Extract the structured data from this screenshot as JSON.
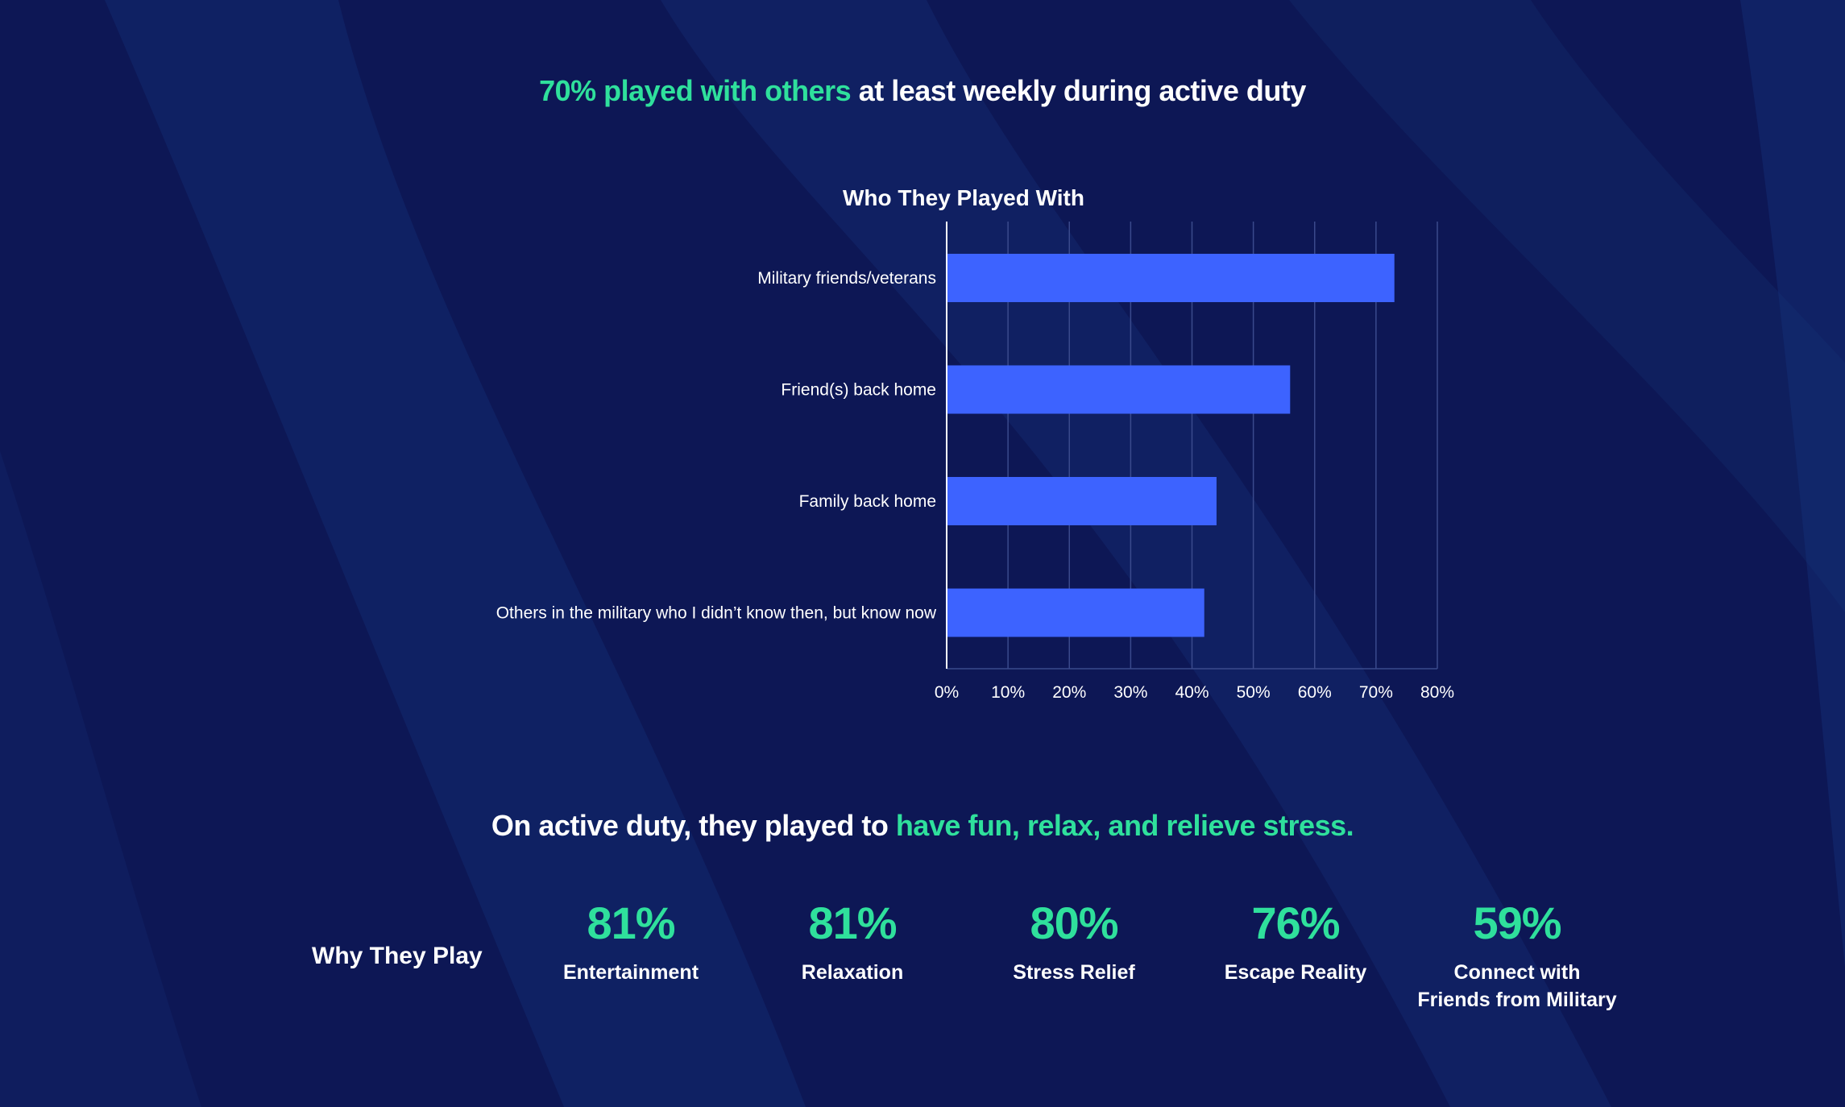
{
  "headline_top": {
    "accent": "70% played with others",
    "rest": " at least weekly during active duty"
  },
  "headline_bottom": {
    "rest": "On active duty, they played to ",
    "accent": "have fun, relax, and relieve stress."
  },
  "colors": {
    "background": "#0d1755",
    "accent": "#2fe09c",
    "bar": "#3d63ff",
    "text": "#ffffff"
  },
  "chart_data": {
    "type": "bar",
    "orientation": "horizontal",
    "title": "Who They Played With",
    "categories": [
      "Military friends/veterans",
      "Friend(s) back home",
      "Family back home",
      "Others in the military who I didn’t know then, but know now"
    ],
    "values": [
      73,
      56,
      44,
      42
    ],
    "unit": "%",
    "xlim": [
      0,
      80
    ],
    "xticks": [
      "0%",
      "10%",
      "20%",
      "30%",
      "40%",
      "50%",
      "60%",
      "70%",
      "80%"
    ],
    "grid": true
  },
  "why": {
    "label": "Why They Play",
    "stats": [
      {
        "pct": "81%",
        "label": "Entertainment"
      },
      {
        "pct": "81%",
        "label": "Relaxation"
      },
      {
        "pct": "80%",
        "label": "Stress Relief"
      },
      {
        "pct": "76%",
        "label": "Escape Reality"
      },
      {
        "pct": "59%",
        "label": "Connect with Friends from Military"
      }
    ]
  }
}
